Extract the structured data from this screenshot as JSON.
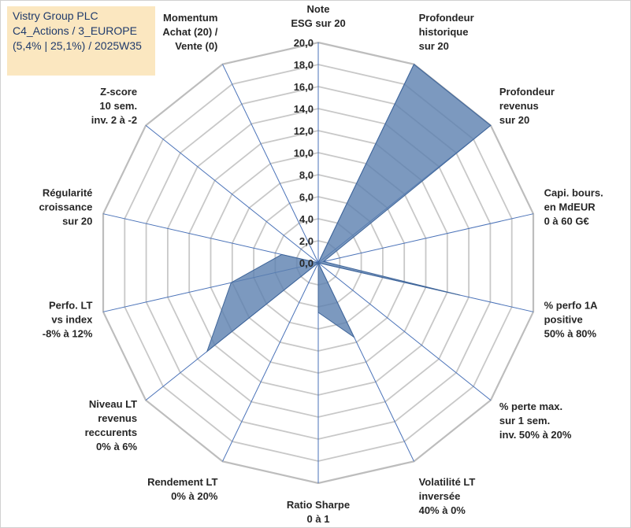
{
  "header": {
    "lines": [
      "Vistry Group PLC",
      "C4_Actions / 3_EUROPE",
      "(5,4% | 25,1%) / 2025W35"
    ]
  },
  "chart_data": {
    "type": "radar",
    "title": "",
    "rmin": 0,
    "rmax": 20,
    "tick_step": 2,
    "tick_labels": [
      "0,0",
      "2,0",
      "4,0",
      "6,0",
      "8,0",
      "10,0",
      "12,0",
      "14,0",
      "16,0",
      "18,0",
      "20,0"
    ],
    "axes": [
      {
        "label": [
          "Note",
          "ESG sur 20"
        ],
        "value": 0
      },
      {
        "label": [
          "Profondeur",
          "historique",
          "sur 20"
        ],
        "value": 20
      },
      {
        "label": [
          "Profondeur",
          "revenus",
          "sur 20"
        ],
        "value": 20
      },
      {
        "label": [
          "Capi. bours.",
          "en MdEUR",
          "0 à 60 G€"
        ],
        "value": 0.5
      },
      {
        "label": [
          "% perfo 1A",
          "positive",
          "50% à 80%"
        ],
        "value": 13.2
      },
      {
        "label": [
          "% perte max.",
          "sur 1 sem.",
          "inv. 50% à 20%"
        ],
        "value": 0
      },
      {
        "label": [
          "Volatilité LT",
          "inversée",
          "40% à 0%"
        ],
        "value": 7.5
      },
      {
        "label": [
          "Ratio Sharpe",
          "0 à 1"
        ],
        "value": 4.5
      },
      {
        "label": [
          "Rendement LT",
          "0% à 20%"
        ],
        "value": 0
      },
      {
        "label": [
          "Niveau LT",
          "revenus",
          "reccurents",
          "0% à 6%"
        ],
        "value": 12.9
      },
      {
        "label": [
          "Perfo. LT",
          "vs index",
          "-8% à 12%"
        ],
        "value": 8.1
      },
      {
        "label": [
          "Régularité",
          "croissance",
          "sur 20"
        ],
        "value": 3.4
      },
      {
        "label": [
          "Z-score",
          "10 sem.",
          "inv. 2 à -2"
        ],
        "value": 0
      },
      {
        "label": [
          "Momentum",
          "Achat (20) /",
          "Vente (0)"
        ],
        "value": 0
      }
    ],
    "series_color": "#5b7faf",
    "series_fill_opacity": 0.8,
    "grid": true,
    "legend": "none"
  }
}
